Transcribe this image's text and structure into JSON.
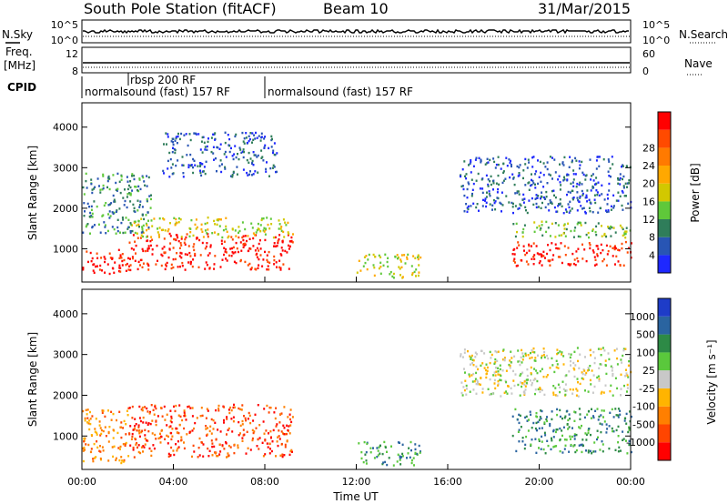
{
  "header": {
    "title": "South Pole Station (fitACF)",
    "beam": "Beam 10",
    "date": "31/Mar/2015"
  },
  "panels": {
    "nsky_label": "N.Sky",
    "nsearch_label": "N.Search",
    "freq_label_1": "Freq.",
    "freq_label_2": "[MHz]",
    "nave_label": "Nave",
    "cpid_label": "CPID",
    "noise_ticks_left": [
      "10^5",
      "10^0"
    ],
    "noise_ticks_right": [
      "10^5",
      "10^0"
    ],
    "freq_ticks": [
      "12",
      "8"
    ],
    "nave_ticks": [
      "60",
      "0"
    ],
    "cpid_entries": [
      {
        "label": "rbsp 200 RF",
        "start": "02:00"
      },
      {
        "label": "normalsound (fast) 157 RF",
        "start": "00:00"
      },
      {
        "label": "normalsound (fast) 157 RF",
        "start": "08:00"
      }
    ]
  },
  "chart_data": [
    {
      "type": "heatmap",
      "panel": "power",
      "ylabel": "Slant Range [km]",
      "yticks": [
        1000,
        2000,
        3000,
        4000
      ],
      "ylim": [
        180,
        4600
      ],
      "xlim_hours": [
        0,
        24
      ],
      "colorbar_label": "Power [dB]",
      "colorbar_ticks": [
        "4",
        "8",
        "12",
        "16",
        "20",
        "24",
        "28"
      ],
      "colorbar_colors": [
        "#1e28ff",
        "#2855b4",
        "#2f7d5a",
        "#5fc83a",
        "#d2c800",
        "#ffa800",
        "#ff7a00",
        "#ff4a00",
        "#ff0000"
      ],
      "echo_regions": [
        {
          "t_start": 0.0,
          "t_end": 2.0,
          "range_min": 350,
          "range_max": 1000,
          "level": 8
        },
        {
          "t_start": 2.0,
          "t_end": 9.2,
          "range_min": 500,
          "range_max": 1400,
          "level": 8
        },
        {
          "t_start": 2.0,
          "t_end": 9.2,
          "range_min": 1300,
          "range_max": 1800,
          "level": 4
        },
        {
          "t_start": 0.0,
          "t_end": 3.0,
          "range_min": 1400,
          "range_max": 2900,
          "level": 2
        },
        {
          "t_start": 3.5,
          "t_end": 8.5,
          "range_min": 2800,
          "range_max": 3900,
          "level": 1
        },
        {
          "t_start": 12.0,
          "t_end": 14.8,
          "range_min": 300,
          "range_max": 900,
          "level": 4
        },
        {
          "t_start": 16.5,
          "t_end": 24.0,
          "range_min": 1900,
          "range_max": 3300,
          "level": 1
        },
        {
          "t_start": 18.8,
          "t_end": 24.0,
          "range_min": 600,
          "range_max": 1200,
          "level": 8
        },
        {
          "t_start": 18.8,
          "t_end": 24.0,
          "range_min": 1300,
          "range_max": 1700,
          "level": 3
        }
      ]
    },
    {
      "type": "heatmap",
      "panel": "velocity",
      "ylabel": "Slant Range [km]",
      "xlabel": "Time UT",
      "yticks": [
        1000,
        2000,
        3000,
        4000
      ],
      "ylim": [
        180,
        4600
      ],
      "xlim_hours": [
        0,
        24
      ],
      "xticks": [
        "00:00",
        "04:00",
        "08:00",
        "12:00",
        "16:00",
        "20:00",
        "00:00"
      ],
      "colorbar_label": "Velocity [m s⁻¹]",
      "colorbar_ticks": [
        "-1000",
        "-500",
        "-100",
        "-25",
        "25",
        "100",
        "500",
        "1000"
      ],
      "colorbar_colors": [
        "#ff0000",
        "#ff4500",
        "#ff7f00",
        "#ffb400",
        "#c8c8c8",
        "#5ac83c",
        "#2d8a46",
        "#2a64a0",
        "#1e3cc8"
      ],
      "echo_regions": [
        {
          "t_start": 0.0,
          "t_end": 2.0,
          "range_min": 350,
          "range_max": 1700,
          "level": 2
        },
        {
          "t_start": 2.0,
          "t_end": 9.2,
          "range_min": 500,
          "range_max": 1800,
          "level": 1
        },
        {
          "t_start": 12.0,
          "t_end": 14.8,
          "range_min": 300,
          "range_max": 900,
          "level": 6
        },
        {
          "t_start": 16.5,
          "t_end": 24.0,
          "range_min": 2000,
          "range_max": 3200,
          "level": 4
        },
        {
          "t_start": 18.8,
          "t_end": 24.0,
          "range_min": 600,
          "range_max": 1700,
          "level": 6
        }
      ]
    }
  ]
}
